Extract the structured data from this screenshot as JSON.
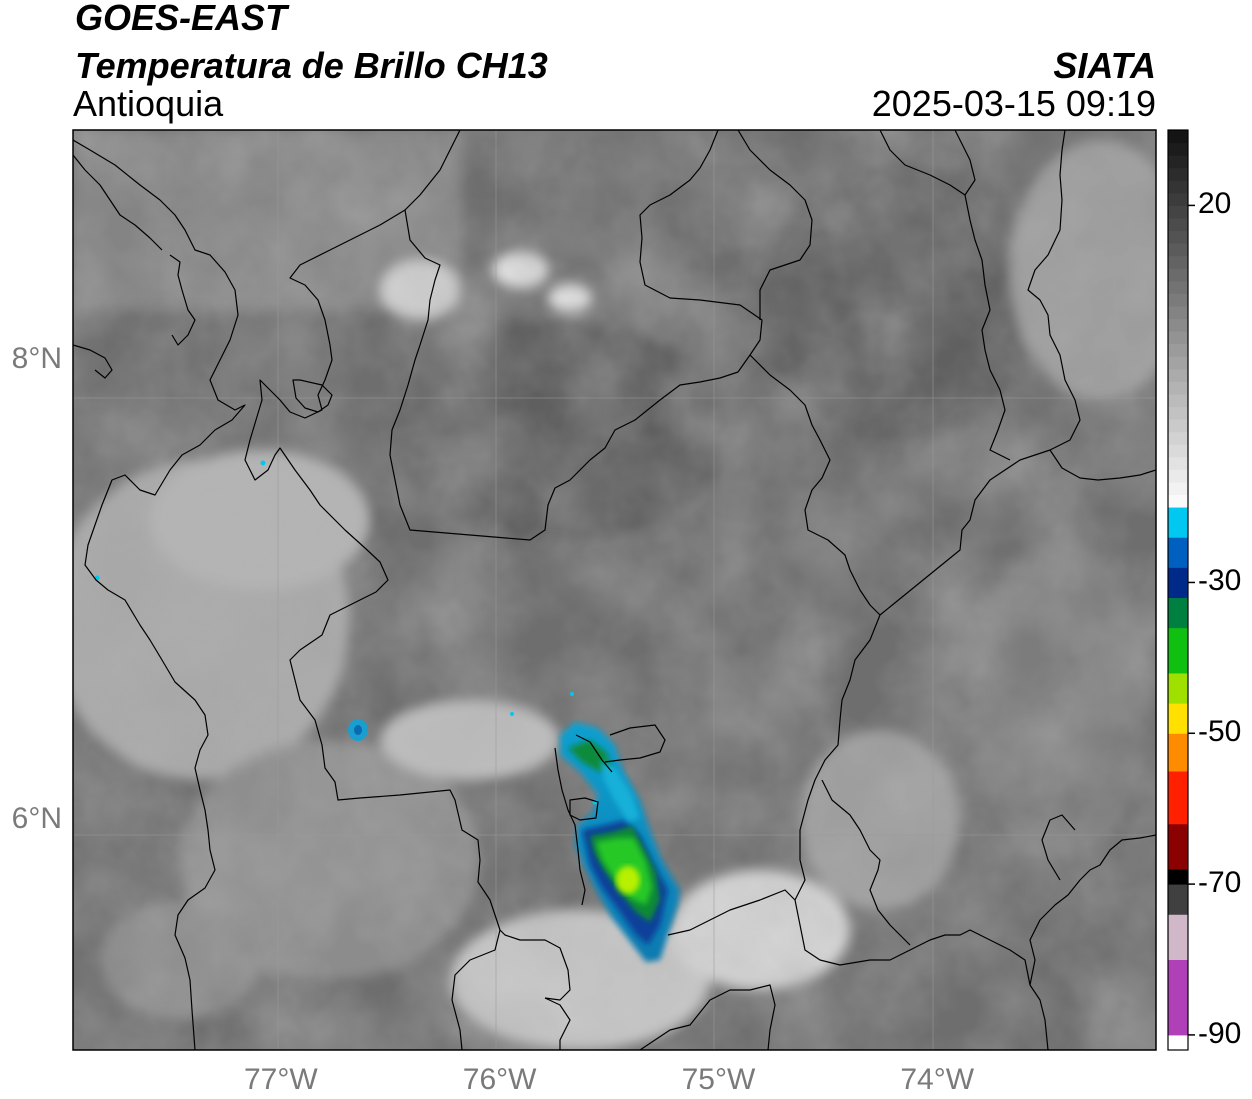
{
  "header": {
    "satellite": "GOES-EAST",
    "product": "Temperatura de Brillo CH13",
    "region": "Antioquia",
    "source": "SIATA",
    "datetime": "2025-03-15 09:19"
  },
  "map": {
    "lon_range": [
      -77.95,
      -73.0
    ],
    "lat_range": [
      5.0,
      9.0
    ],
    "lon_ticks": [
      {
        "value": -77,
        "label": "77°W"
      },
      {
        "value": -76,
        "label": "76°W"
      },
      {
        "value": -75,
        "label": "75°W"
      },
      {
        "value": -74,
        "label": "74°W"
      }
    ],
    "lat_ticks": [
      {
        "value": 8,
        "label": "8°N"
      },
      {
        "value": 6,
        "label": "6°N"
      }
    ],
    "gridlines": true,
    "basemap": "grayscale-brightness-temperature",
    "cold_cloud_colors": [
      "#00e5ff",
      "#0070c0",
      "#003399",
      "#008a3a",
      "#00cc00",
      "#a8f000",
      "#ffee00"
    ]
  },
  "colorbar": {
    "range": [
      -92,
      30
    ],
    "ticks": [
      {
        "value": 20,
        "label": "20"
      },
      {
        "value": -30,
        "label": "-30"
      },
      {
        "value": -50,
        "label": "-50"
      },
      {
        "value": -70,
        "label": "-70"
      },
      {
        "value": -90,
        "label": "-90"
      }
    ],
    "segments": [
      {
        "from": -92,
        "to": -90,
        "color": "#ffffff"
      },
      {
        "from": -90,
        "to": -80,
        "color": "#b040b8"
      },
      {
        "from": -80,
        "to": -74,
        "color": "#d0b8c8"
      },
      {
        "from": -74,
        "to": -70,
        "color": "#404040"
      },
      {
        "from": -70,
        "to": -68,
        "color": "#000000"
      },
      {
        "from": -68,
        "to": -62,
        "color": "#8b0000"
      },
      {
        "from": -62,
        "to": -55,
        "color": "#ff2000"
      },
      {
        "from": -55,
        "to": -50,
        "color": "#ff8c00"
      },
      {
        "from": -50,
        "to": -46,
        "color": "#ffe000"
      },
      {
        "from": -46,
        "to": -42,
        "color": "#a0e000"
      },
      {
        "from": -42,
        "to": -36,
        "color": "#10c010"
      },
      {
        "from": -36,
        "to": -32,
        "color": "#008040"
      },
      {
        "from": -32,
        "to": -28,
        "color": "#002a8a"
      },
      {
        "from": -28,
        "to": -24,
        "color": "#0060c0"
      },
      {
        "from": -24,
        "to": -20,
        "color": "#00c8f0"
      },
      {
        "from": -20,
        "to": 30,
        "color": "grayscale"
      }
    ]
  }
}
